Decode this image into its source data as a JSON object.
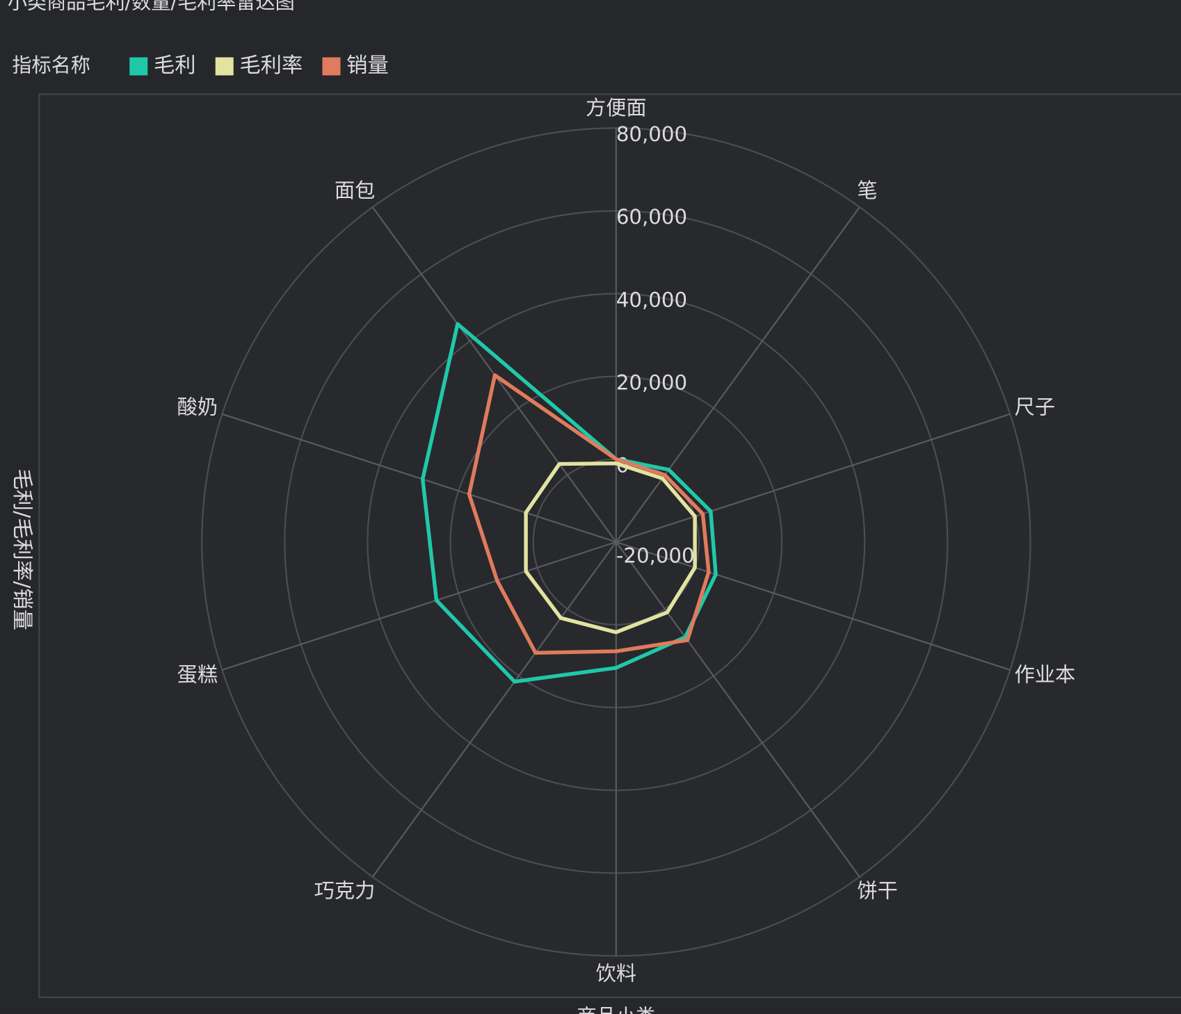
{
  "chart_data": {
    "type": "radar",
    "title": "小类商品毛利/数量/毛利率雷达图",
    "legend_title": "指标名称",
    "y_label": "毛利/毛利率/销量",
    "x_label": "商品小类",
    "categories": [
      "方便面",
      "笔",
      "尺子",
      "作业本",
      "饼干",
      "饮料",
      "巧克力",
      "蛋糕",
      "酸奶",
      "面包"
    ],
    "series": [
      {
        "name": "毛利",
        "color": "#1fc8a8",
        "values": [
          0,
          1600,
          4000,
          5300,
          8400,
          10400,
          21700,
          25600,
          29100,
          45100
        ]
      },
      {
        "name": "毛利率",
        "color": "#e3e3a1",
        "values": [
          -1000,
          -1000,
          0,
          0,
          1000,
          1800,
          2700,
          2900,
          2900,
          3300
        ]
      },
      {
        "name": "销量",
        "color": "#e07b5e",
        "values": [
          0,
          0,
          2000,
          3500,
          9300,
          6400,
          13100,
          10200,
          17300,
          29800
        ]
      }
    ],
    "ylim": [
      -20000,
      80000
    ],
    "yticks": [
      {
        "value": -20000,
        "label": "-20,000"
      },
      0,
      {
        "value": 20000,
        "label": "20,000"
      },
      {
        "value": 40000,
        "label": "40,000"
      },
      {
        "value": 60000,
        "label": "60,000"
      },
      {
        "value": 80000,
        "label": "80,000"
      }
    ],
    "grid": true
  }
}
